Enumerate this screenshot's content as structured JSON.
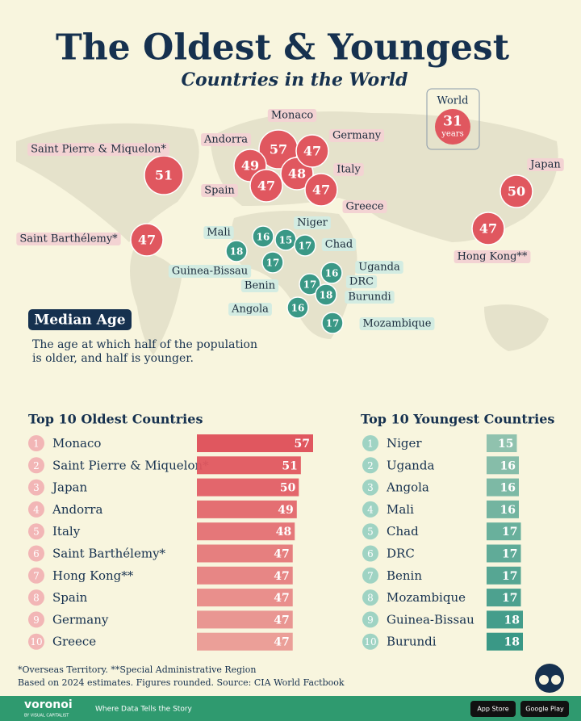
{
  "title": "The Oldest & Youngest",
  "subtitle": "Countries in the World",
  "world": {
    "label": "World",
    "value": 31,
    "unit": "years"
  },
  "legend_box": {
    "title": "Median Age",
    "lines": [
      "The age at which half of the population",
      "is older, and half is younger."
    ]
  },
  "chart_data": [
    {
      "type": "bar",
      "orientation": "horizontal",
      "title": "Top 10 Oldest Countries",
      "ranks": [
        1,
        2,
        3,
        4,
        5,
        6,
        7,
        8,
        9,
        10
      ],
      "categories": [
        "Monaco",
        "Saint Pierre & Miquelon*",
        "Japan",
        "Andorra",
        "Italy",
        "Saint Barthélemy*",
        "Hong Kong**",
        "Spain",
        "Germany",
        "Greece"
      ],
      "values": [
        57,
        51,
        50,
        49,
        48,
        47,
        47,
        47,
        47,
        47
      ],
      "color": "#e0575f",
      "xlim": [
        0,
        57
      ]
    },
    {
      "type": "bar",
      "orientation": "horizontal",
      "title": "Top 10 Youngest Countries",
      "ranks": [
        1,
        2,
        3,
        4,
        5,
        6,
        7,
        8,
        9,
        10
      ],
      "categories": [
        "Niger",
        "Uganda",
        "Angola",
        "Mali",
        "Chad",
        "DRC",
        "Benin",
        "Mozambique",
        "Guinea-Bissau",
        "Burundi"
      ],
      "values": [
        15,
        16,
        16,
        16,
        17,
        17,
        17,
        17,
        18,
        18
      ],
      "color": "#3a9886",
      "xlim": [
        0,
        18
      ]
    }
  ],
  "footnotes": [
    "*Overseas Territory. **Special Administrative Region",
    "Based on 2024 estimates. Figures rounded. Source: CIA World Factbook"
  ],
  "footer": {
    "brand": "voronoi",
    "byline": "BY VISUAL CAPITALIST",
    "tagline": "Where Data Tells the Story",
    "app_store": "App Store",
    "google_play": "Google Play"
  }
}
